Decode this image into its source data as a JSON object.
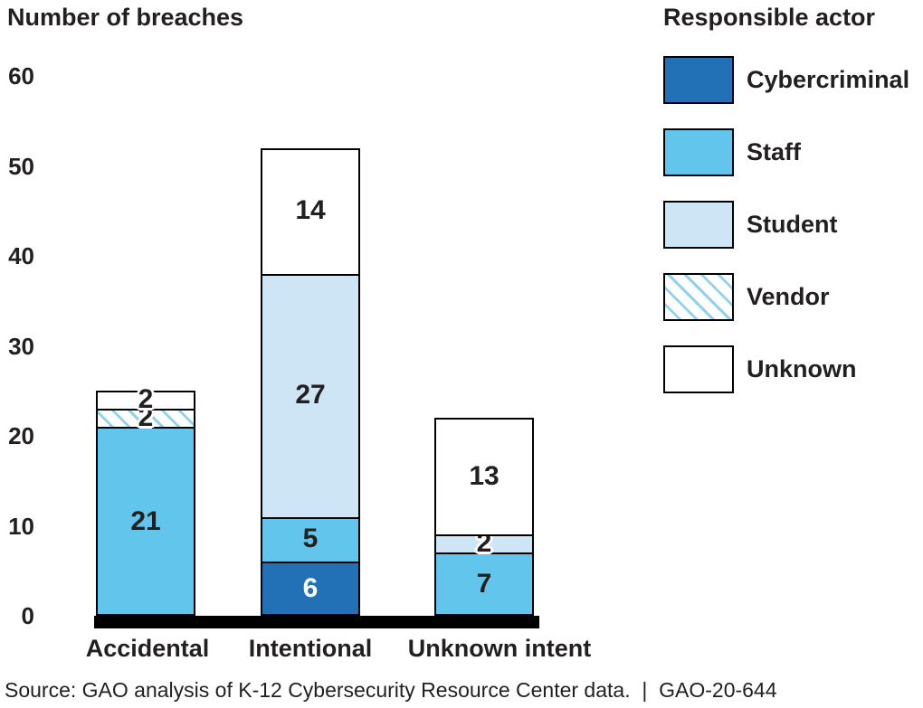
{
  "axis_title": "Number of breaches",
  "legend": {
    "title": "Responsible actor",
    "items": [
      {
        "label": "Cybercriminal",
        "color": "#2270B5",
        "pattern": "solid"
      },
      {
        "label": "Staff",
        "color": "#62C5EB",
        "pattern": "solid"
      },
      {
        "label": "Student",
        "color": "#CDE5F5",
        "pattern": "solid"
      },
      {
        "label": "Vendor",
        "color": "#8FD3F0",
        "pattern": "diagonal-stripes"
      },
      {
        "label": "Unknown",
        "color": "#FFFFFF",
        "pattern": "solid"
      }
    ]
  },
  "chart_data": {
    "type": "bar",
    "stacked": true,
    "title": "Number of breaches",
    "categories": [
      "Accidental",
      "Intentional",
      "Unknown intent"
    ],
    "series": [
      {
        "name": "Cybercriminal",
        "values": [
          0,
          6,
          0
        ]
      },
      {
        "name": "Staff",
        "values": [
          21,
          5,
          7
        ]
      },
      {
        "name": "Student",
        "values": [
          0,
          27,
          2
        ]
      },
      {
        "name": "Vendor",
        "values": [
          2,
          0,
          0
        ]
      },
      {
        "name": "Unknown",
        "values": [
          2,
          14,
          13
        ]
      }
    ],
    "yticks": [
      0,
      10,
      20,
      30,
      40,
      50,
      60
    ],
    "ylim": [
      0,
      60
    ],
    "grid": false,
    "legend_position": "right"
  },
  "colors": {
    "cybercriminal": "#2270B5",
    "staff": "#62C5EB",
    "student": "#CDE5F5",
    "vendor_stripe": "#8FD3F0",
    "unknown": "#FFFFFF",
    "border": "#000000",
    "text": "#231F20"
  },
  "source_line": "Source: GAO analysis of K-12 Cybersecurity Resource Center data.  |  GAO-20-644"
}
